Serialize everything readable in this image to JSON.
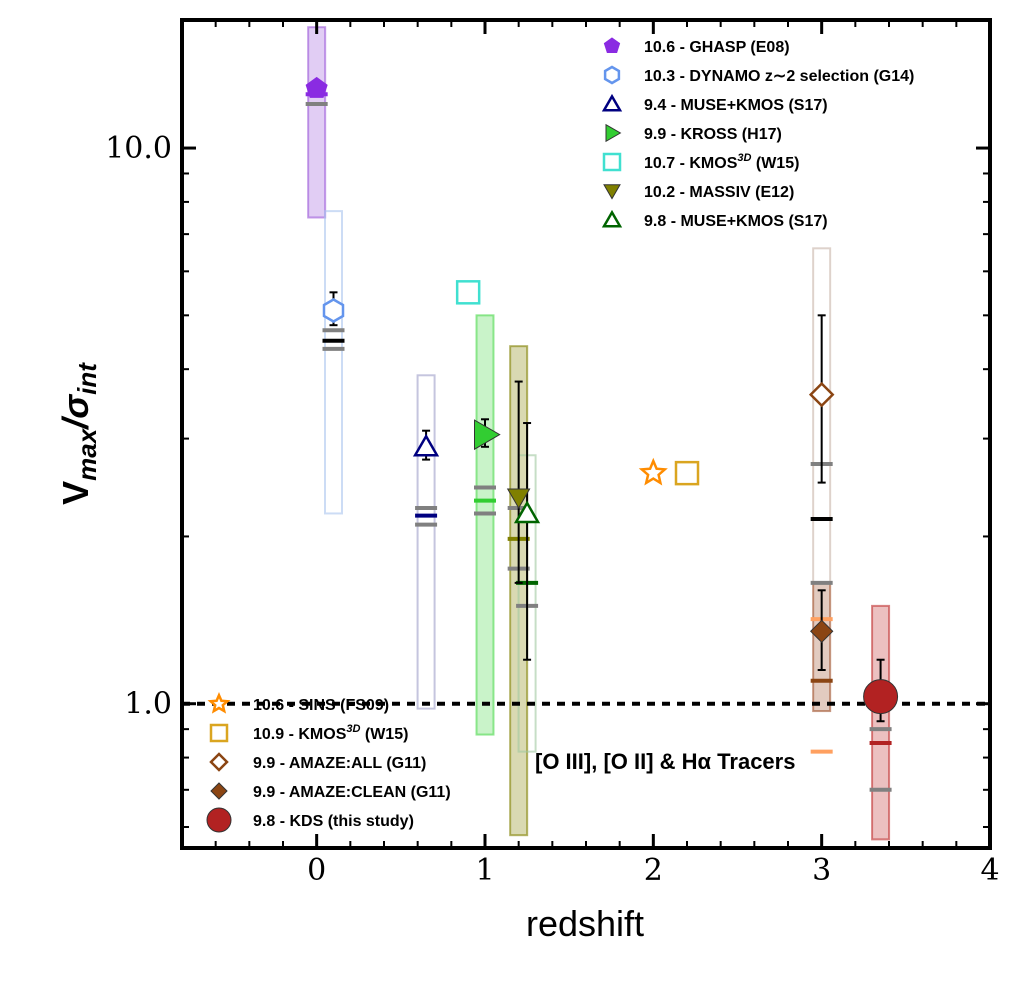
{
  "chart_data": {
    "type": "scatter",
    "title": "",
    "xlabel": "redshift",
    "ylabel": "V_max/σ_int",
    "ylabel_parts": {
      "main": "V",
      "sub1": "max",
      "sep": "/σ",
      "sub2": "int"
    },
    "xlim": [
      -0.8,
      4.0
    ],
    "ylim": [
      0.55,
      17
    ],
    "yscale": "log",
    "x_ticks": [
      0,
      1,
      2,
      3,
      4
    ],
    "x_tick_labels": [
      "0",
      "1",
      "2",
      "3",
      "4"
    ],
    "y_ticks": [
      1.0,
      10.0
    ],
    "y_tick_labels": [
      "1.0",
      "10.0"
    ],
    "reference_line": {
      "y": 1.0,
      "style": "dotted"
    },
    "annotation": "[O III], [O II] & Hα Tracers",
    "range_boxes": [
      {
        "x": 0.0,
        "low": 7.5,
        "high": 16.5,
        "color": "#9b59d9",
        "fill": true
      },
      {
        "x": 0.1,
        "low": 2.2,
        "high": 7.7,
        "color": "#aac4ef",
        "fill": false
      },
      {
        "x": 0.65,
        "low": 0.98,
        "high": 3.9,
        "color": "#9e9ec8",
        "fill": false
      },
      {
        "x": 1.0,
        "low": 0.88,
        "high": 5.0,
        "color": "#4dd84d",
        "fill": true
      },
      {
        "x": 1.2,
        "low": 0.58,
        "high": 4.4,
        "color": "#808000",
        "fill": true
      },
      {
        "x": 1.25,
        "low": 0.82,
        "high": 2.8,
        "color": "#a0c8a0",
        "fill": false
      },
      {
        "x": 3.0,
        "low": 1.65,
        "high": 6.6,
        "color": "#c8b4a8",
        "fill": false
      },
      {
        "x": 3.0,
        "low": 0.97,
        "high": 1.65,
        "color": "#a0522d",
        "fill": true
      },
      {
        "x": 3.35,
        "low": 0.57,
        "high": 1.5,
        "color": "#c03030",
        "fill": true
      }
    ],
    "median_bars": [
      {
        "x": 0.0,
        "y": 12.5,
        "color": "#8a2be2"
      },
      {
        "x": 0.0,
        "y": 12.0,
        "color": "#808080"
      },
      {
        "x": 0.1,
        "y": 4.7,
        "color": "#808080"
      },
      {
        "x": 0.1,
        "y": 4.5,
        "color": "#000000"
      },
      {
        "x": 0.1,
        "y": 4.35,
        "color": "#808080"
      },
      {
        "x": 0.65,
        "y": 2.25,
        "color": "#808080"
      },
      {
        "x": 0.65,
        "y": 2.18,
        "color": "#000080"
      },
      {
        "x": 0.65,
        "y": 2.1,
        "color": "#808080"
      },
      {
        "x": 1.0,
        "y": 2.45,
        "color": "#808080"
      },
      {
        "x": 1.0,
        "y": 2.32,
        "color": "#32cd32"
      },
      {
        "x": 1.0,
        "y": 2.2,
        "color": "#808080"
      },
      {
        "x": 1.2,
        "y": 2.25,
        "color": "#808080"
      },
      {
        "x": 1.2,
        "y": 1.98,
        "color": "#808000"
      },
      {
        "x": 1.2,
        "y": 1.75,
        "color": "#808080"
      },
      {
        "x": 1.25,
        "y": 1.65,
        "color": "#006400"
      },
      {
        "x": 1.25,
        "y": 1.5,
        "color": "#808080"
      },
      {
        "x": 3.0,
        "y": 2.7,
        "color": "#808080"
      },
      {
        "x": 3.0,
        "y": 2.15,
        "color": "#000000"
      },
      {
        "x": 3.0,
        "y": 1.65,
        "color": "#808080"
      },
      {
        "x": 3.0,
        "y": 1.42,
        "color": "#ffa060"
      },
      {
        "x": 3.0,
        "y": 1.1,
        "color": "#8b4513"
      },
      {
        "x": 3.0,
        "y": 0.82,
        "color": "#ffa060"
      },
      {
        "x": 3.35,
        "y": 0.9,
        "color": "#808080"
      },
      {
        "x": 3.35,
        "y": 0.85,
        "color": "#b22222"
      },
      {
        "x": 3.35,
        "y": 0.7,
        "color": "#808080"
      }
    ],
    "series": [
      {
        "name": "10.6 - GHASP (E08)",
        "marker": "pentagon",
        "color": "#8a2be2",
        "filled": true,
        "points": [
          {
            "x": 0.0,
            "y": 12.8,
            "err": [
              12.5,
              13.1
            ]
          }
        ]
      },
      {
        "name": "10.3 - DYNAMO z∼2 selection (G14)",
        "marker": "hexagon",
        "color": "#6495ed",
        "filled": false,
        "points": [
          {
            "x": 0.1,
            "y": 5.1,
            "err": [
              4.8,
              5.5
            ]
          }
        ]
      },
      {
        "name": "9.4 - MUSE+KMOS (S17)",
        "marker": "triangle-up",
        "color": "#000080",
        "filled": false,
        "points": [
          {
            "x": 0.65,
            "y": 2.9,
            "err": [
              2.75,
              3.1
            ]
          }
        ]
      },
      {
        "name": "9.9 - KROSS (H17)",
        "marker": "triangle-right",
        "color": "#32cd32",
        "filled": true,
        "points": [
          {
            "x": 1.0,
            "y": 3.05,
            "err": [
              2.9,
              3.25
            ]
          }
        ]
      },
      {
        "name": "10.7 - KMOS3D (W15)",
        "legend_parts": [
          "10.7 - KMOS",
          "3D",
          " (W15)"
        ],
        "marker": "square",
        "color": "#40e0d0",
        "filled": false,
        "points": [
          {
            "x": 0.9,
            "y": 5.5
          }
        ]
      },
      {
        "name": "10.2 - MASSIV (E12)",
        "marker": "triangle-down",
        "color": "#808000",
        "filled": true,
        "points": [
          {
            "x": 1.2,
            "y": 2.35,
            "err": [
              1.65,
              3.8
            ]
          }
        ]
      },
      {
        "name": "9.8 - MUSE+KMOS (S17)",
        "marker": "triangle-up",
        "color": "#006400",
        "filled": false,
        "points": [
          {
            "x": 1.25,
            "y": 2.2,
            "err": [
              1.2,
              3.2
            ]
          }
        ]
      },
      {
        "name": "10.6 - SINS (FS09)",
        "marker": "star",
        "color": "#ff8c00",
        "filled": false,
        "points": [
          {
            "x": 2.0,
            "y": 2.6
          }
        ]
      },
      {
        "name": "10.9 - KMOS3D (W15)",
        "legend_parts": [
          "10.9 - KMOS",
          "3D",
          " (W15)"
        ],
        "marker": "square",
        "color": "#daa520",
        "filled": false,
        "points": [
          {
            "x": 2.2,
            "y": 2.6
          }
        ]
      },
      {
        "name": "9.9 - AMAZE:ALL (G11)",
        "marker": "diamond",
        "color": "#8b4513",
        "filled": false,
        "points": [
          {
            "x": 3.0,
            "y": 3.6,
            "err": [
              2.5,
              5.0
            ]
          }
        ]
      },
      {
        "name": "9.9 - AMAZE:CLEAN (G11)",
        "marker": "diamond",
        "color": "#8b4513",
        "filled": true,
        "points": [
          {
            "x": 3.0,
            "y": 1.35,
            "err": [
              1.15,
              1.6
            ]
          }
        ]
      },
      {
        "name": "9.8 - KDS (this study)",
        "marker": "circle",
        "color": "#b22222",
        "filled": true,
        "points": [
          {
            "x": 3.35,
            "y": 1.03,
            "err": [
              0.93,
              1.2
            ]
          }
        ]
      }
    ],
    "legend_top": [
      "10.6 - GHASP (E08)",
      "10.3 - DYNAMO z∼2 selection (G14)",
      "9.4 - MUSE+KMOS (S17)",
      "9.9 - KROSS (H17)",
      "10.7 - KMOS3D (W15)",
      "10.2 - MASSIV (E12)",
      "9.8 - MUSE+KMOS (S17)"
    ],
    "legend_bottom": [
      "10.6 - SINS (FS09)",
      "10.9 - KMOS3D (W15)",
      "9.9 - AMAZE:ALL (G11)",
      "9.9 - AMAZE:CLEAN (G11)",
      "9.8 - KDS (this study)"
    ],
    "legend_placement": {
      "top": "top-right",
      "bottom": "bottom-left"
    }
  }
}
